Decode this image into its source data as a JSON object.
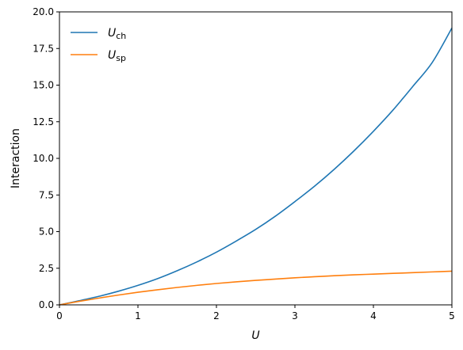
{
  "chart_data": {
    "type": "line",
    "title": "",
    "xlabel": "U",
    "ylabel": "Interaction",
    "xlim": [
      0,
      5
    ],
    "ylim": [
      0,
      20
    ],
    "xticks": [
      0,
      1,
      2,
      3,
      4,
      5
    ],
    "xtick_labels": [
      "0",
      "1",
      "2",
      "3",
      "4",
      "5"
    ],
    "yticks": [
      0,
      2.5,
      5,
      7.5,
      10,
      12.5,
      15,
      17.5,
      20
    ],
    "ytick_labels": [
      "0.0",
      "2.5",
      "5.0",
      "7.5",
      "10.0",
      "12.5",
      "15.0",
      "17.5",
      "20.0"
    ],
    "grid": false,
    "legend_position": "top-left",
    "series": [
      {
        "name": "U_ch",
        "label_main": "U",
        "label_sub": "ch",
        "color": "#1f77b4",
        "x": [
          0,
          0.25,
          0.5,
          0.75,
          1.0,
          1.25,
          1.5,
          1.75,
          2.0,
          2.25,
          2.5,
          2.75,
          3.0,
          3.25,
          3.5,
          3.75,
          4.0,
          4.25,
          4.5,
          4.75,
          5.0
        ],
        "y": [
          0,
          0.28,
          0.58,
          0.93,
          1.33,
          1.79,
          2.33,
          2.93,
          3.6,
          4.35,
          5.15,
          6.05,
          7.05,
          8.1,
          9.25,
          10.5,
          11.85,
          13.3,
          14.9,
          16.55,
          18.9
        ]
      },
      {
        "name": "U_sp",
        "label_main": "U",
        "label_sub": "sp",
        "color": "#ff7f0e",
        "x": [
          0,
          0.25,
          0.5,
          0.75,
          1.0,
          1.25,
          1.5,
          1.75,
          2.0,
          2.25,
          2.5,
          2.75,
          3.0,
          3.25,
          3.5,
          3.75,
          4.0,
          4.25,
          4.5,
          4.75,
          5.0
        ],
        "y": [
          0,
          0.24,
          0.46,
          0.67,
          0.86,
          1.03,
          1.19,
          1.33,
          1.46,
          1.57,
          1.67,
          1.76,
          1.85,
          1.92,
          1.99,
          2.05,
          2.1,
          2.15,
          2.2,
          2.25,
          2.3
        ]
      }
    ]
  }
}
